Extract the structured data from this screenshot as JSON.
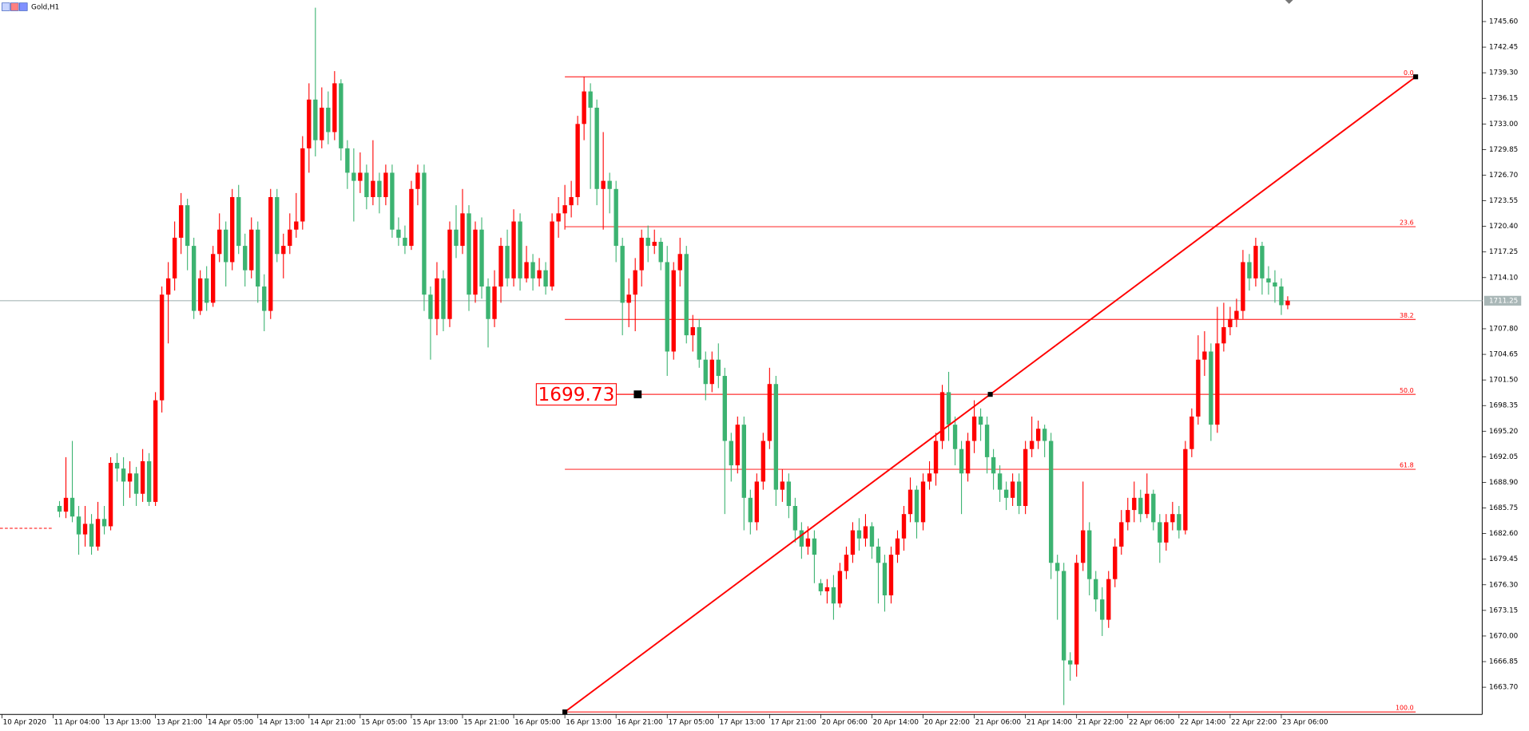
{
  "chart_data": {
    "type": "candlestick",
    "title": "Gold,H1",
    "up_color": "#ff0000",
    "down_color": "#3cb371",
    "ylim": [
      1660.35,
      1748.25
    ],
    "yticks": [
      {
        "value": 1745.6,
        "label": "1745.60"
      },
      1742.45,
      {
        "value": 1739.3,
        "label": "1739.30"
      },
      1736.15,
      {
        "value": 1733,
        "label": "1733.00"
      },
      1729.85,
      {
        "value": 1726.7,
        "label": "1726.70"
      },
      1723.55,
      {
        "value": 1720.4,
        "label": "1720.40"
      },
      1717.25,
      {
        "value": 1714.1,
        "label": "1714.10"
      },
      {
        "value": 1707.8,
        "label": "1707.80"
      },
      1704.65,
      {
        "value": 1701.5,
        "label": "1701.50"
      },
      1698.35,
      {
        "value": 1695.2,
        "label": "1695.20"
      },
      1692.05,
      {
        "value": 1688.9,
        "label": "1688.90"
      },
      1685.75,
      {
        "value": 1682.6,
        "label": "1682.60"
      },
      1679.45,
      {
        "value": 1676.3,
        "label": "1676.30"
      },
      1673.15,
      {
        "value": 1670,
        "label": "1670.00"
      },
      1666.85,
      {
        "value": 1663.7,
        "label": "1663.70"
      }
    ],
    "categories": [
      "10 Apr 2020",
      null,
      null,
      null,
      null,
      null,
      null,
      null,
      "11 Apr 04:00",
      null,
      null,
      null,
      null,
      null,
      null,
      null,
      "13 Apr 13:00",
      null,
      null,
      null,
      null,
      null,
      null,
      null,
      "13 Apr 21:00",
      null,
      null,
      null,
      null,
      null,
      null,
      null,
      "14 Apr 05:00",
      null,
      null,
      null,
      null,
      null,
      null,
      null,
      "14 Apr 13:00",
      null,
      null,
      null,
      null,
      null,
      null,
      null,
      "14 Apr 21:00",
      null,
      null,
      null,
      null,
      null,
      null,
      null,
      "15 Apr 05:00",
      null,
      null,
      null,
      null,
      null,
      null,
      null,
      "15 Apr 13:00",
      null,
      null,
      null,
      null,
      null,
      null,
      null,
      "15 Apr 21:00",
      null,
      null,
      null,
      null,
      null,
      null,
      null,
      "16 Apr 05:00",
      null,
      null,
      null,
      null,
      null,
      null,
      null,
      "16 Apr 13:00",
      null,
      null,
      null,
      null,
      null,
      null,
      null,
      "16 Apr 21:00",
      null,
      null,
      null,
      null,
      null,
      null,
      null,
      "17 Apr 05:00",
      null,
      null,
      null,
      null,
      null,
      null,
      null,
      "17 Apr 13:00",
      null,
      null,
      null,
      null,
      null,
      null,
      null,
      "17 Apr 21:00",
      null,
      null,
      null,
      null,
      null,
      null,
      null,
      "20 Apr 06:00",
      null,
      null,
      null,
      null,
      null,
      null,
      null,
      "20 Apr 14:00",
      null,
      null,
      null,
      null,
      null,
      null,
      null,
      "20 Apr 22:00",
      null,
      null,
      null,
      null,
      null,
      null,
      null,
      "21 Apr 06:00",
      null,
      null,
      null,
      null,
      null,
      null,
      null,
      "21 Apr 14:00",
      null,
      null,
      null,
      null,
      null,
      null,
      null,
      "21 Apr 22:00",
      null,
      null,
      null,
      null,
      null,
      null,
      null,
      "22 Apr 06:00",
      null,
      null,
      null,
      null,
      null,
      null,
      null,
      "22 Apr 14:00",
      null,
      null,
      null,
      null,
      null,
      null,
      null,
      "22 Apr 22:00",
      null,
      null,
      null,
      null,
      null,
      null,
      null,
      "23 Apr 06:00",
      null
    ],
    "ohlc": [
      null,
      null,
      null,
      null,
      null,
      null,
      null,
      null,
      null,
      [
        1686,
        1686.6,
        1684.6,
        1685.3
      ],
      [
        1685.3,
        1692,
        1684.5,
        1687
      ],
      [
        1687,
        1694,
        1684,
        1684.7
      ],
      [
        1684.7,
        1686,
        1680,
        1682.5
      ],
      [
        1682.5,
        1686,
        1681,
        1683.8
      ],
      [
        1683.8,
        1685,
        1680,
        1681
      ],
      [
        1681,
        1686.5,
        1680.5,
        1684.4
      ],
      [
        1684.4,
        1686,
        1682.5,
        1683.5
      ],
      [
        1683.5,
        1692,
        1683,
        1691.3
      ],
      [
        1691.3,
        1692.5,
        1689,
        1690.6
      ],
      [
        1690.6,
        1692,
        1686,
        1689
      ],
      [
        1689,
        1691.5,
        1687,
        1690
      ],
      [
        1690,
        1690.8,
        1686,
        1687.5
      ],
      [
        1687.5,
        1693,
        1686.5,
        1691.5
      ],
      [
        1691.5,
        1692.5,
        1686,
        1686.5
      ],
      [
        1686.5,
        1700,
        1686,
        1699
      ],
      [
        1699,
        1713,
        1697.5,
        1712
      ],
      [
        1712,
        1716,
        1706,
        1714
      ],
      [
        1714,
        1721,
        1712.5,
        1719
      ],
      [
        1719,
        1724.5,
        1717,
        1723
      ],
      [
        1723,
        1723.8,
        1715,
        1718
      ],
      [
        1718,
        1719,
        1709,
        1710
      ],
      [
        1710,
        1715,
        1709.5,
        1714
      ],
      [
        1714,
        1715.5,
        1710,
        1711
      ],
      [
        1711,
        1718,
        1710.5,
        1717
      ],
      [
        1717,
        1722,
        1716,
        1720
      ],
      [
        1720,
        1721,
        1713,
        1716
      ],
      [
        1716,
        1725,
        1715,
        1724
      ],
      [
        1724,
        1725.5,
        1717,
        1718
      ],
      [
        1718,
        1719.5,
        1713,
        1715
      ],
      [
        1715,
        1721.5,
        1714,
        1720
      ],
      [
        1720,
        1721,
        1711,
        1713
      ],
      [
        1713,
        1714.5,
        1707.5,
        1710
      ],
      [
        1710,
        1725,
        1709,
        1724
      ],
      [
        1724,
        1725,
        1716,
        1717
      ],
      [
        1717,
        1719.5,
        1714,
        1718
      ],
      [
        1718,
        1722,
        1717,
        1720
      ],
      [
        1720,
        1724.5,
        1719,
        1721
      ],
      [
        1721,
        1731.5,
        1720,
        1730
      ],
      [
        1730,
        1738,
        1727,
        1736
      ],
      [
        1736,
        1747.3,
        1729,
        1731
      ],
      [
        1731,
        1737.5,
        1730,
        1735
      ],
      [
        1735,
        1737,
        1730.5,
        1732
      ],
      [
        1732,
        1739.5,
        1731,
        1738
      ],
      [
        1738,
        1738.5,
        1728.5,
        1730
      ],
      [
        1730,
        1731,
        1725,
        1727
      ],
      [
        1727,
        1730,
        1721,
        1726
      ],
      [
        1726,
        1729.5,
        1724.5,
        1727
      ],
      [
        1727,
        1728,
        1722.5,
        1724
      ],
      [
        1724,
        1731,
        1723,
        1726
      ],
      [
        1726,
        1727,
        1722,
        1724
      ],
      [
        1724,
        1728,
        1723,
        1727
      ],
      [
        1727,
        1728,
        1719,
        1720
      ],
      [
        1720,
        1721.5,
        1718,
        1719
      ],
      [
        1719,
        1720.5,
        1717,
        1718
      ],
      [
        1718,
        1726,
        1717.5,
        1725
      ],
      [
        1725,
        1728,
        1723,
        1727
      ],
      [
        1727,
        1728,
        1710,
        1712
      ],
      [
        1712,
        1713,
        1704,
        1709
      ],
      [
        1709,
        1716,
        1707,
        1714
      ],
      [
        1714,
        1715,
        1707.5,
        1709
      ],
      [
        1709,
        1721,
        1708,
        1720
      ],
      [
        1720,
        1723,
        1716.5,
        1718
      ],
      [
        1718,
        1725,
        1717,
        1722
      ],
      [
        1722,
        1723,
        1710,
        1712
      ],
      [
        1712,
        1721,
        1711,
        1720
      ],
      [
        1720,
        1721.5,
        1711.5,
        1713
      ],
      [
        1713,
        1714,
        1705.5,
        1709
      ],
      [
        1709,
        1715,
        1708,
        1713
      ],
      [
        1713,
        1719,
        1711,
        1718
      ],
      [
        1718,
        1720,
        1713,
        1714
      ],
      [
        1714,
        1722.5,
        1713,
        1721
      ],
      [
        1721,
        1722,
        1712.5,
        1714
      ],
      [
        1714,
        1718,
        1713.5,
        1716
      ],
      [
        1716,
        1717,
        1712.5,
        1714
      ],
      [
        1714,
        1716.5,
        1713,
        1715
      ],
      [
        1715,
        1716,
        1712,
        1713
      ],
      [
        1713,
        1722,
        1712.5,
        1721
      ],
      [
        1721,
        1724,
        1719,
        1722
      ],
      [
        1722,
        1725.5,
        1720,
        1723
      ],
      [
        1723,
        1726,
        1721.5,
        1724
      ],
      [
        1724,
        1734,
        1723,
        1733
      ],
      [
        1733,
        1738.8,
        1731,
        1737
      ],
      [
        1737,
        1738,
        1725,
        1735
      ],
      [
        1735,
        1736,
        1723,
        1725
      ],
      [
        1725,
        1732,
        1720,
        1726
      ],
      [
        1726,
        1727,
        1722,
        1725
      ],
      [
        1725,
        1726,
        1716,
        1718
      ],
      [
        1718,
        1719,
        1707,
        1711
      ],
      [
        1711,
        1714,
        1708,
        1712
      ],
      [
        1712,
        1716.5,
        1707.5,
        1715
      ],
      [
        1715,
        1720,
        1713,
        1719
      ],
      [
        1719,
        1720.5,
        1716,
        1718
      ],
      [
        1718,
        1720,
        1717,
        1718.5
      ],
      [
        1718.5,
        1719,
        1715,
        1716
      ],
      [
        1716,
        1718,
        1702,
        1705
      ],
      [
        1705,
        1716,
        1704,
        1715
      ],
      [
        1715,
        1719,
        1713,
        1717
      ],
      [
        1717,
        1718,
        1706,
        1707
      ],
      [
        1707,
        1709.5,
        1705,
        1708
      ],
      [
        1708,
        1709,
        1703,
        1704
      ],
      [
        1704,
        1705,
        1699,
        1701
      ],
      [
        1701,
        1705,
        1700,
        1704
      ],
      [
        1704,
        1706,
        1700.5,
        1702
      ],
      [
        1702,
        1703,
        1685,
        1694
      ],
      [
        1694,
        1695,
        1689,
        1691
      ],
      [
        1691,
        1697,
        1690,
        1696
      ],
      [
        1696,
        1697,
        1683,
        1687
      ],
      [
        1687,
        1688,
        1682.5,
        1684
      ],
      [
        1684,
        1690,
        1683,
        1689
      ],
      [
        1689,
        1695,
        1688,
        1694
      ],
      [
        1694,
        1703,
        1693,
        1701
      ],
      [
        1701,
        1702,
        1686,
        1688
      ],
      [
        1688,
        1690.5,
        1686.5,
        1689
      ],
      [
        1689,
        1690,
        1684.5,
        1686
      ],
      [
        1686,
        1687,
        1681.5,
        1683
      ],
      [
        1683,
        1684,
        1679.5,
        1681
      ],
      [
        1681,
        1683.5,
        1680,
        1682
      ],
      [
        1682,
        1683,
        1676.5,
        1680
      ],
      [
        1676.5,
        1677,
        1675,
        1675.5
      ],
      [
        1675.5,
        1677,
        1674,
        1676
      ],
      [
        1676,
        1677.5,
        1672,
        1674
      ],
      [
        1674,
        1679,
        1673.5,
        1678
      ],
      [
        1678,
        1681,
        1677,
        1680
      ],
      [
        1680,
        1684,
        1679,
        1683
      ],
      [
        1683,
        1684.5,
        1680.5,
        1682
      ],
      [
        1682,
        1685,
        1681,
        1683.5
      ],
      [
        1683.5,
        1684,
        1679.5,
        1681
      ],
      [
        1681,
        1682,
        1674,
        1679
      ],
      [
        1679,
        1680,
        1673,
        1675
      ],
      [
        1675,
        1681,
        1674,
        1680
      ],
      [
        1680,
        1683,
        1679,
        1682
      ],
      [
        1682,
        1686,
        1680.5,
        1685
      ],
      [
        1685,
        1689.5,
        1684,
        1688
      ],
      [
        1688,
        1688.5,
        1682,
        1684
      ],
      [
        1684,
        1690,
        1683,
        1689
      ],
      [
        1689,
        1691.5,
        1688,
        1690
      ],
      [
        1690,
        1695,
        1688.5,
        1694
      ],
      [
        1694,
        1700.9,
        1693,
        1700
      ],
      [
        1700,
        1702.5,
        1694,
        1696
      ],
      [
        1696,
        1697,
        1691,
        1693
      ],
      [
        1693,
        1694,
        1685,
        1690
      ],
      [
        1690,
        1695,
        1689,
        1694
      ],
      [
        1694,
        1699,
        1692.5,
        1697
      ],
      [
        1697,
        1698,
        1694,
        1696
      ],
      [
        1696,
        1697,
        1690,
        1692
      ],
      [
        1692,
        1693,
        1688,
        1690
      ],
      [
        1690,
        1691,
        1686.5,
        1688
      ],
      [
        1688,
        1689,
        1685.5,
        1687
      ],
      [
        1687,
        1690,
        1686,
        1689
      ],
      [
        1689,
        1690,
        1685,
        1686
      ],
      [
        1686,
        1694,
        1685,
        1693
      ],
      [
        1693,
        1697,
        1692,
        1694
      ],
      [
        1694,
        1696.5,
        1693,
        1695.5
      ],
      [
        1695.5,
        1696,
        1692,
        1694
      ],
      [
        1694,
        1695,
        1677,
        1679
      ],
      [
        1679,
        1680,
        1672,
        1678
      ],
      [
        1678,
        1679,
        1661.5,
        1667
      ],
      [
        1667,
        1668,
        1664.5,
        1666.5
      ],
      [
        1666.5,
        1680,
        1665,
        1679
      ],
      [
        1679,
        1689,
        1678,
        1683
      ],
      [
        1683,
        1684,
        1675,
        1677
      ],
      [
        1677,
        1678,
        1673,
        1674.5
      ],
      [
        1674.5,
        1676,
        1670,
        1672
      ],
      [
        1672,
        1678,
        1671,
        1677
      ],
      [
        1677,
        1682,
        1676,
        1681
      ],
      [
        1681,
        1685.5,
        1680,
        1684
      ],
      [
        1684,
        1687,
        1683,
        1685.5
      ],
      [
        1685.5,
        1689,
        1684,
        1687
      ],
      [
        1687,
        1688,
        1684,
        1685
      ],
      [
        1685,
        1690,
        1684.5,
        1687.5
      ],
      [
        1687.5,
        1688,
        1683,
        1684
      ],
      [
        1684,
        1685,
        1679,
        1681.5
      ],
      [
        1681.5,
        1685,
        1680.5,
        1684
      ],
      [
        1684,
        1686.5,
        1683,
        1685
      ],
      [
        1685,
        1686,
        1682,
        1683
      ],
      [
        1683,
        1694,
        1682.5,
        1693
      ],
      [
        1693,
        1698,
        1692,
        1697
      ],
      [
        1697,
        1707,
        1696,
        1704
      ],
      [
        1704,
        1707.5,
        1702,
        1705
      ],
      [
        1705,
        1706,
        1694,
        1696
      ],
      [
        1696,
        1710.5,
        1695,
        1706
      ],
      [
        1706,
        1711,
        1705,
        1708
      ],
      [
        1708,
        1710.5,
        1707,
        1709
      ],
      [
        1709,
        1711.5,
        1708,
        1710
      ],
      [
        1710,
        1717.5,
        1709,
        1716
      ],
      [
        1716,
        1717,
        1712.5,
        1714
      ],
      [
        1714,
        1719,
        1713,
        1718
      ],
      [
        1718,
        1718.5,
        1712,
        1714
      ],
      [
        1714,
        1715.5,
        1712,
        1713.5
      ],
      [
        1713.5,
        1715,
        1711,
        1713
      ],
      [
        1713,
        1714,
        1709.5,
        1710.7
      ],
      [
        1710.7,
        1711.8,
        1710.2,
        1711.25
      ]
    ],
    "last_price": 1711.25,
    "level_line": 1683.25,
    "fib": {
      "high": 1738.8,
      "low": 1660.66,
      "start": 88,
      "end": 221,
      "levels": [
        {
          "value": 0,
          "label": "0.0"
        },
        23.6,
        38.2,
        {
          "value": 50,
          "label": "50.0"
        },
        61.8,
        {
          "value": 100,
          "label": "100.0"
        }
      ]
    },
    "price_label": 1699.73
  }
}
